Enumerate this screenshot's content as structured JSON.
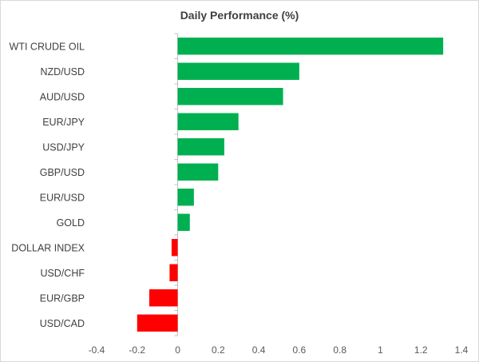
{
  "chart_data": {
    "type": "bar",
    "orientation": "horizontal",
    "title": "Daily Performance (%)",
    "xlabel": "",
    "ylabel": "",
    "categories": [
      "WTI CRUDE OIL",
      "NZD/USD",
      "AUD/USD",
      "EUR/JPY",
      "USD/JPY",
      "GBP/USD",
      "EUR/USD",
      "GOLD",
      "DOLLAR INDEX",
      "USD/CHF",
      "EUR/GBP",
      "USD/CAD"
    ],
    "values": [
      1.31,
      0.6,
      0.52,
      0.3,
      0.23,
      0.2,
      0.08,
      0.06,
      -0.03,
      -0.04,
      -0.14,
      -0.2
    ],
    "xlim": [
      -0.4,
      1.4
    ],
    "xticks": [
      -0.4,
      -0.2,
      0,
      0.2,
      0.4,
      0.6,
      0.8,
      1,
      1.2,
      1.4
    ],
    "xtick_labels": [
      "-0.4",
      "-0.2",
      "0",
      "0.2",
      "0.4",
      "0.6",
      "0.8",
      "1",
      "1.2",
      "1.4"
    ],
    "grid": false,
    "legend": "none",
    "colors": {
      "positive": "#00b050",
      "negative": "#ff0000",
      "axis": "#bfbfbf",
      "text": "#404040"
    }
  }
}
